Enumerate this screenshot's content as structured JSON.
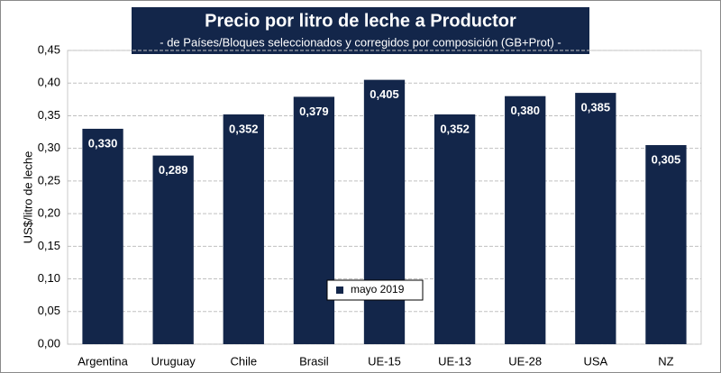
{
  "chart_data": {
    "type": "bar",
    "title": "Precio por litro de leche a Productor",
    "subtitle": "-  de Países/Bloques seleccionados y corregidos por composición (GB+Prot) -",
    "y_label": "US$/litro de leche",
    "categories": [
      "Argentina",
      "Uruguay",
      "Chile",
      "Brasil",
      "UE-15",
      "UE-13",
      "UE-28",
      "USA",
      "NZ"
    ],
    "series": [
      {
        "name": "mayo 2019",
        "color": "#13264a",
        "values": [
          0.33,
          0.289,
          0.352,
          0.379,
          0.405,
          0.352,
          0.38,
          0.385,
          0.305
        ],
        "value_labels": [
          "0,330",
          "0,289",
          "0,352",
          "0,379",
          "0,405",
          "0,352",
          "0,380",
          "0,385",
          "0,305"
        ]
      }
    ],
    "ylim": [
      0,
      0.45
    ],
    "yticks": [
      {
        "value": 0,
        "label": "0,00"
      },
      {
        "value": 0.05,
        "label": "0,05"
      },
      {
        "value": 0.1,
        "label": "0,10"
      },
      {
        "value": 0.15,
        "label": "0,15"
      },
      {
        "value": 0.2,
        "label": "0,20"
      },
      {
        "value": 0.25,
        "label": "0,25"
      },
      {
        "value": 0.3,
        "label": "0,30"
      },
      {
        "value": 0.35,
        "label": "0,35"
      },
      {
        "value": 0.4,
        "label": "0,40"
      },
      {
        "value": 0.45,
        "label": "0,45"
      }
    ],
    "grid": true
  }
}
